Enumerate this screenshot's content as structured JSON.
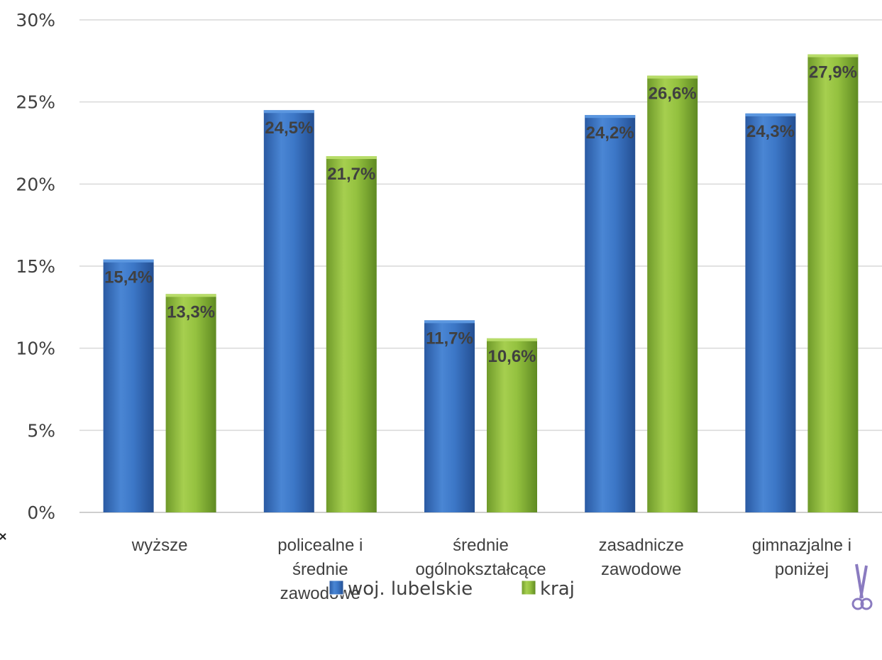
{
  "chart_data": {
    "type": "bar",
    "categories": [
      [
        "wyższe"
      ],
      [
        "policealne i",
        "średnie",
        "zawodowe"
      ],
      [
        "średnie",
        "ogólnokształcące"
      ],
      [
        "zasadnicze",
        "zawodowe"
      ],
      [
        "gimnazjalne i",
        "poniżej"
      ]
    ],
    "series": [
      {
        "name": "woj. lubelskie",
        "color": "#3a72c0",
        "values": [
          15.4,
          24.5,
          11.7,
          24.2,
          24.3
        ],
        "labels": [
          "15,4%",
          "24,5%",
          "11,7%",
          "24,2%",
          "24,3%"
        ]
      },
      {
        "name": "kraj",
        "color": "#8db83b",
        "values": [
          13.3,
          21.7,
          10.6,
          26.6,
          27.9
        ],
        "labels": [
          "13,3%",
          "21,7%",
          "10,6%",
          "26,6%",
          "27,9%"
        ]
      }
    ],
    "yticks": [
      "0%",
      "5%",
      "10%",
      "15%",
      "20%",
      "25%",
      "30%"
    ],
    "ylim": [
      0,
      30
    ],
    "grid": true,
    "legend_position": "bottom",
    "title": "",
    "xlabel": "",
    "ylabel": ""
  }
}
